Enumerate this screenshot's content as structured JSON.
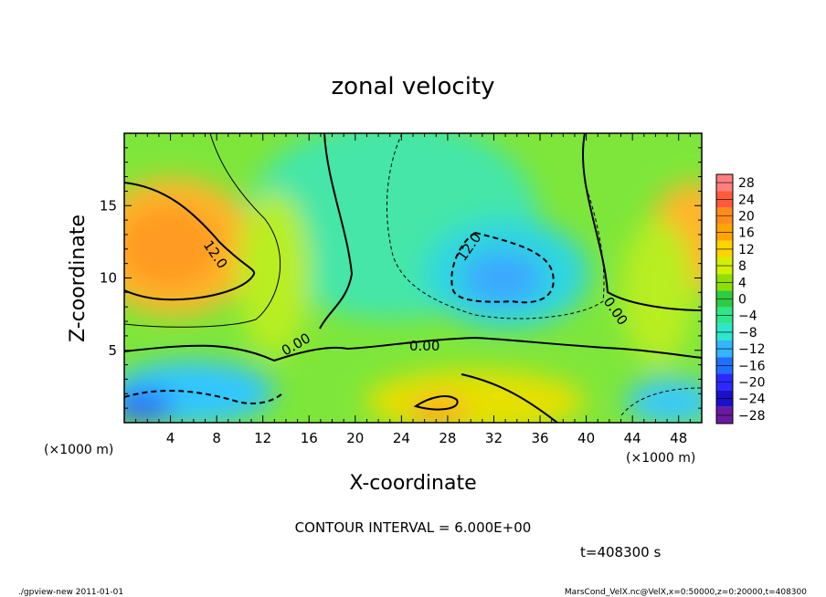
{
  "chart_data": {
    "type": "heatmap",
    "title": "zonal velocity",
    "xlabel": "X-coordinate",
    "ylabel": "Z-coordinate",
    "x_unit": "(×1000 m)",
    "z_unit": "(×1000 m)",
    "x_range": [
      0,
      50
    ],
    "z_range": [
      0,
      20
    ],
    "x_ticks": [
      "4",
      "8",
      "12",
      "16",
      "20",
      "24",
      "28",
      "32",
      "36",
      "40",
      "44",
      "48"
    ],
    "z_ticks": [
      "5",
      "10",
      "15"
    ],
    "contour_interval_label": "CONTOUR INTERVAL = 6.000E+00",
    "contour_labels": [
      "12.0",
      "12.0",
      "0.00",
      "0.00",
      "0.00"
    ],
    "time_label": "t=408300 s",
    "colorbar": {
      "levels": [
        "28",
        "24",
        "20",
        "16",
        "12",
        "8",
        "4",
        "0",
        "−4",
        "−8",
        "−12",
        "−16",
        "−20",
        "−24",
        "−28"
      ],
      "colors": [
        "#ff7f7f",
        "#ff5a3c",
        "#ff8c1a",
        "#ffa500",
        "#ffd400",
        "#d2f000",
        "#8ee000",
        "#2ecc40",
        "#2ee68a",
        "#2ee6cc",
        "#33b5ff",
        "#1f6fff",
        "#2a2aff",
        "#1a10c8",
        "#6a1aa0"
      ]
    },
    "features": [
      {
        "name": "positive maximum",
        "x": 5,
        "z": 12.5,
        "value": 16
      },
      {
        "name": "negative minimum",
        "x": 33,
        "z": 10.5,
        "value": -12
      },
      {
        "name": "positive maximum right",
        "x": 49,
        "z": 13,
        "value": 14
      },
      {
        "name": "negative near-surface left",
        "x": 2,
        "z": 1,
        "value": -14
      },
      {
        "name": "positive near-surface",
        "x": 31,
        "z": 1,
        "value": 12
      }
    ]
  },
  "footer": {
    "left": "./gpview-new  2011-01-01",
    "right": "MarsCond_VelX.nc@VelX,x=0:50000,z=0:20000,t=408300"
  }
}
